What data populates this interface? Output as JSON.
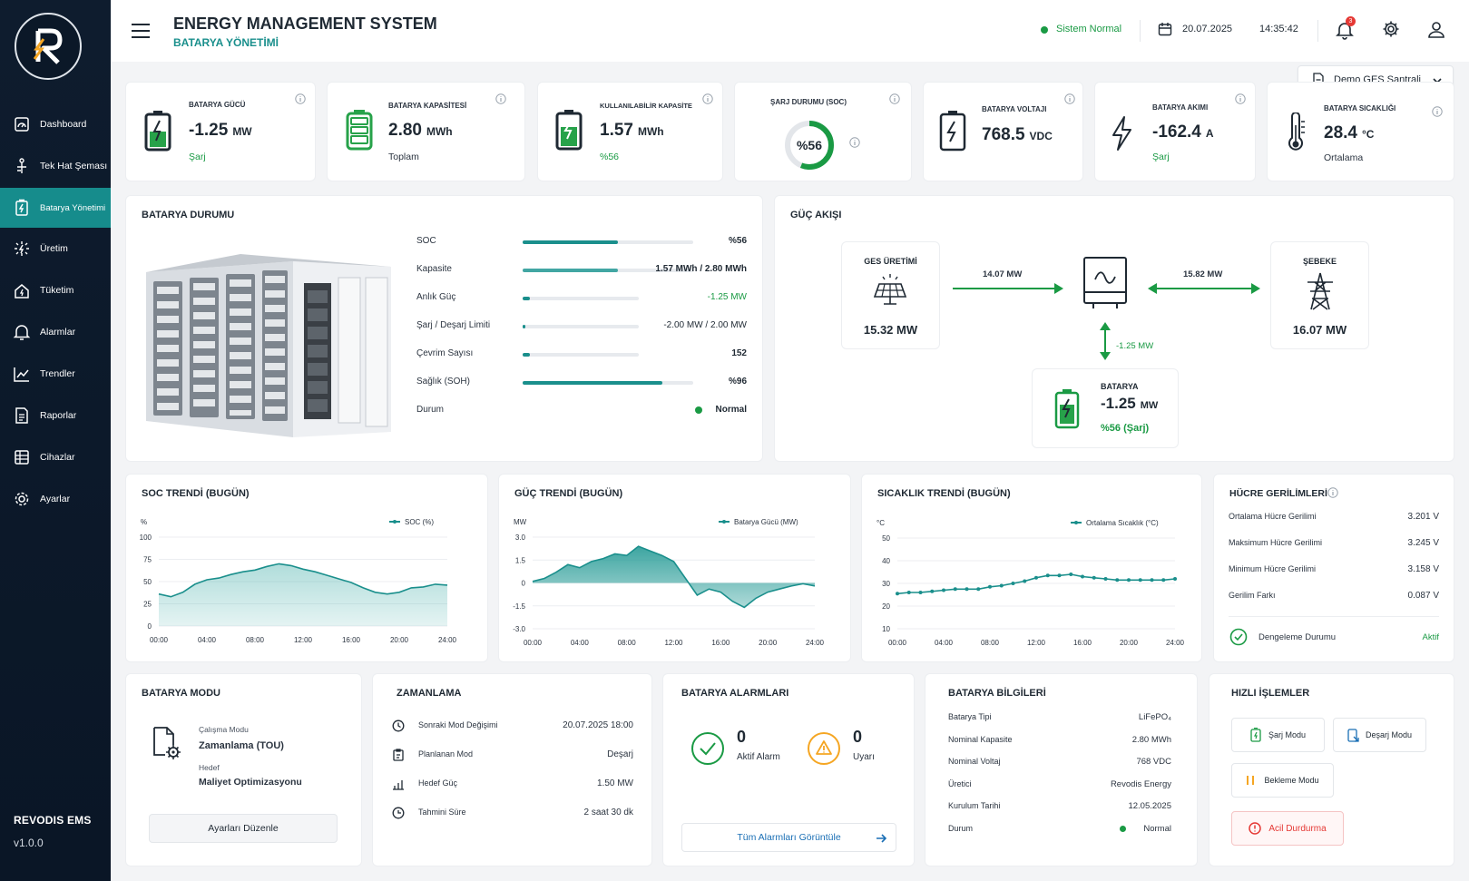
{
  "app": {
    "brand": "REVODIS EMS",
    "version": "v1.0.0",
    "title": "ENERGY MANAGEMENT SYSTEM",
    "subtitle": "BATARYA YÖNETİMİ"
  },
  "sidebar": {
    "items": [
      {
        "label": "Dashboard",
        "icon": "dashboard-icon"
      },
      {
        "label": "Tek Hat Şeması",
        "icon": "single-line-diagram-icon"
      },
      {
        "label": "Batarya Yönetimi",
        "icon": "battery-management-icon",
        "active": true
      },
      {
        "label": "Üretim",
        "icon": "production-icon"
      },
      {
        "label": "Tüketim",
        "icon": "consumption-icon"
      },
      {
        "label": "Alarmlar",
        "icon": "bell-icon"
      },
      {
        "label": "Trendler",
        "icon": "trend-icon"
      },
      {
        "label": "Raporlar",
        "icon": "report-icon"
      },
      {
        "label": "Cihazlar",
        "icon": "devices-icon"
      },
      {
        "label": "Ayarlar",
        "icon": "gear-icon"
      }
    ]
  },
  "header": {
    "status": "Sistem Normal",
    "date": "20.07.2025",
    "time": "14:35:42",
    "notification_count": "3",
    "plant": "Demo GES Santrali"
  },
  "kpis": {
    "battery_power": {
      "label": "BATARYA GÜCÜ",
      "value": "-1.25",
      "unit": "MW",
      "sub": "Şarj"
    },
    "battery_capacity": {
      "label": "BATARYA KAPASİTESİ",
      "value": "2.80",
      "unit": "MWh",
      "sub": "Toplam"
    },
    "usable_capacity": {
      "label": "KULLANILABİLİR KAPASİTE",
      "value": "1.57",
      "unit": "MWh",
      "sub": "%56"
    },
    "soc": {
      "label": "ŞARJ DURUMU (SOC)",
      "value": "%56",
      "fraction": 0.56
    },
    "voltage": {
      "label": "BATARYA VOLTAJI",
      "value": "768.5",
      "unit": "VDC"
    },
    "current": {
      "label": "BATARYA AKIMI",
      "value": "-162.4",
      "unit": "A",
      "sub": "Şarj"
    },
    "temperature": {
      "label": "BATARYA SICAKLIĞI",
      "value": "28.4",
      "unit": "°C",
      "sub": "Ortalama"
    }
  },
  "battery_status": {
    "title": "BATARYA DURUMU",
    "rows": [
      {
        "label": "SOC",
        "value": "%56",
        "fill": 0.56
      },
      {
        "label": "Kapasite",
        "value": "1.57 MWh / 2.80 MWh",
        "fill": 0.56
      },
      {
        "label": "Anlık Güç",
        "value": "-1.25 MW",
        "fill": 0.06
      },
      {
        "label": "Şarj / Deşarj Limiti",
        "value": "-2.00 MW / 2.00 MW",
        "fill": 0.02
      },
      {
        "label": "Çevrim Sayısı",
        "value": "152",
        "fill": 0.06
      },
      {
        "label": "Sağlık (SOH)",
        "value": "%96",
        "fill": 0.82
      },
      {
        "label": "Durum",
        "value": "Normal"
      }
    ]
  },
  "power_flow": {
    "title": "GÜÇ AKIŞI",
    "ges_label": "GES ÜRETİMİ",
    "ges_value": "15.32 MW",
    "ges_flow": "14.07 MW",
    "grid_flow": "15.82 MW",
    "grid_label": "ŞEBEKE",
    "grid_value": "16.07 MW",
    "battery_flow": "-1.25 MW",
    "battery_label": "BATARYA",
    "battery_value": "-1.25",
    "battery_unit": "MW",
    "battery_sub": "%56 (Şarj)"
  },
  "chart_data": [
    {
      "type": "area",
      "title": "SOC TRENDİ (BUGÜN)",
      "ylabel": "%",
      "legend": "SOC (%)",
      "ylim": [
        0,
        100
      ],
      "yticks": [
        "100",
        "75",
        "50",
        "25",
        "0"
      ],
      "xticks": [
        "00:00",
        "04:00",
        "08:00",
        "12:00",
        "16:00",
        "20:00",
        "24:00"
      ],
      "x": [
        0,
        1,
        2,
        3,
        4,
        5,
        6,
        7,
        8,
        9,
        10,
        11,
        12,
        13,
        14,
        15,
        16,
        17,
        18,
        19,
        20,
        21,
        22,
        23,
        24
      ],
      "values": [
        36,
        33,
        38,
        47,
        52,
        54,
        58,
        61,
        63,
        67,
        70,
        68,
        64,
        61,
        57,
        53,
        49,
        43,
        38,
        36,
        38,
        43,
        44,
        47,
        46
      ]
    },
    {
      "type": "area",
      "title": "GÜÇ TRENDİ (BUGÜN)",
      "ylabel": "MW",
      "legend": "Batarya Gücü (MW)",
      "ylim": [
        -3,
        3
      ],
      "yticks": [
        "3.0",
        "1.5",
        "0",
        "-1.5",
        "-3.0"
      ],
      "xticks": [
        "00:00",
        "04:00",
        "08:00",
        "12:00",
        "16:00",
        "20:00",
        "24:00"
      ],
      "x": [
        0,
        1,
        2,
        3,
        4,
        5,
        6,
        7,
        8,
        9,
        10,
        11,
        12,
        13,
        14,
        15,
        16,
        17,
        18,
        19,
        20,
        21,
        22,
        23,
        24
      ],
      "values": [
        0.1,
        0.3,
        0.7,
        1.2,
        1.0,
        1.4,
        1.6,
        1.9,
        1.8,
        2.4,
        2.1,
        1.8,
        1.4,
        0.3,
        -0.8,
        -0.4,
        -0.6,
        -1.2,
        -1.6,
        -1.0,
        -0.6,
        -0.4,
        -0.2,
        -0.05,
        -0.2
      ]
    },
    {
      "type": "line",
      "title": "SICAKLIK TRENDİ (BUGÜN)",
      "ylabel": "°C",
      "legend": "Ortalama Sıcaklık (°C)",
      "ylim": [
        10,
        50
      ],
      "yticks": [
        "50",
        "40",
        "30",
        "20",
        "10"
      ],
      "xticks": [
        "00:00",
        "04:00",
        "08:00",
        "12:00",
        "16:00",
        "20:00",
        "24:00"
      ],
      "x": [
        0,
        1,
        2,
        3,
        4,
        5,
        6,
        7,
        8,
        9,
        10,
        11,
        12,
        13,
        14,
        15,
        16,
        17,
        18,
        19,
        20,
        21,
        22,
        23,
        24
      ],
      "values": [
        25.5,
        26,
        26,
        26.5,
        27,
        27.5,
        27.5,
        27.5,
        28.5,
        29,
        30,
        31,
        32.5,
        33.5,
        33.5,
        34,
        33,
        32.5,
        32,
        31.5,
        31.5,
        31.5,
        31.5,
        31.5,
        32
      ]
    }
  ],
  "cell_voltages": {
    "title": "HÜCRE GERİLİMLERİ",
    "rows": [
      {
        "label": "Ortalama Hücre Gerilimi",
        "value": "3.201 V"
      },
      {
        "label": "Maksimum Hücre Gerilimi",
        "value": "3.245 V"
      },
      {
        "label": "Minimum Hücre Gerilimi",
        "value": "3.158 V"
      },
      {
        "label": "Gerilim Farkı",
        "value": "0.087 V"
      }
    ],
    "balance_label": "Dengeleme Durumu",
    "balance_value": "Aktif"
  },
  "battery_mode": {
    "title": "BATARYA MODU",
    "mode_label": "Çalışma Modu",
    "mode_value": "Zamanlama (TOU)",
    "target_label": "Hedef",
    "target_value": "Maliyet Optimizasyonu",
    "button": "Ayarları Düzenle"
  },
  "schedule": {
    "title": "ZAMANLAMA",
    "rows": [
      {
        "label": "Sonraki Mod Değişimi",
        "value": "20.07.2025 18:00",
        "icon": "clock-icon"
      },
      {
        "label": "Planlanan Mod",
        "value": "Deşarj",
        "icon": "clipboard-icon"
      },
      {
        "label": "Hedef Güç",
        "value": "1.50 MW",
        "icon": "target-power-icon"
      },
      {
        "label": "Tahmini Süre",
        "value": "2 saat 30 dk",
        "icon": "timer-icon"
      }
    ]
  },
  "alarms": {
    "title": "BATARYA ALARMLARI",
    "active_count": "0",
    "active_label": "Aktif Alarm",
    "warning_count": "0",
    "warning_label": "Uyarı",
    "button": "Tüm Alarmları Görüntüle"
  },
  "battery_info": {
    "title": "BATARYA BİLGİLERİ",
    "rows": [
      {
        "label": "Batarya Tipi",
        "value": "LiFePO₄"
      },
      {
        "label": "Nominal Kapasite",
        "value": "2.80 MWh"
      },
      {
        "label": "Nominal Voltaj",
        "value": "768 VDC"
      },
      {
        "label": "Üretici",
        "value": "Revodis Energy"
      },
      {
        "label": "Kurulum Tarihi",
        "value": "12.05.2025"
      },
      {
        "label": "Durum",
        "value": "Normal"
      }
    ]
  },
  "quick_actions": {
    "title": "HIZLI İŞLEMLER",
    "charge": "Şarj Modu",
    "discharge": "Deşarj Modu",
    "standby": "Bekleme Modu",
    "emergency": "Acil Durdurma"
  },
  "colors": {
    "teal": "#1a8f8c",
    "green": "#1a9a44",
    "navy": "#0e1c2e",
    "red": "#e53935",
    "orange": "#f5a623"
  }
}
